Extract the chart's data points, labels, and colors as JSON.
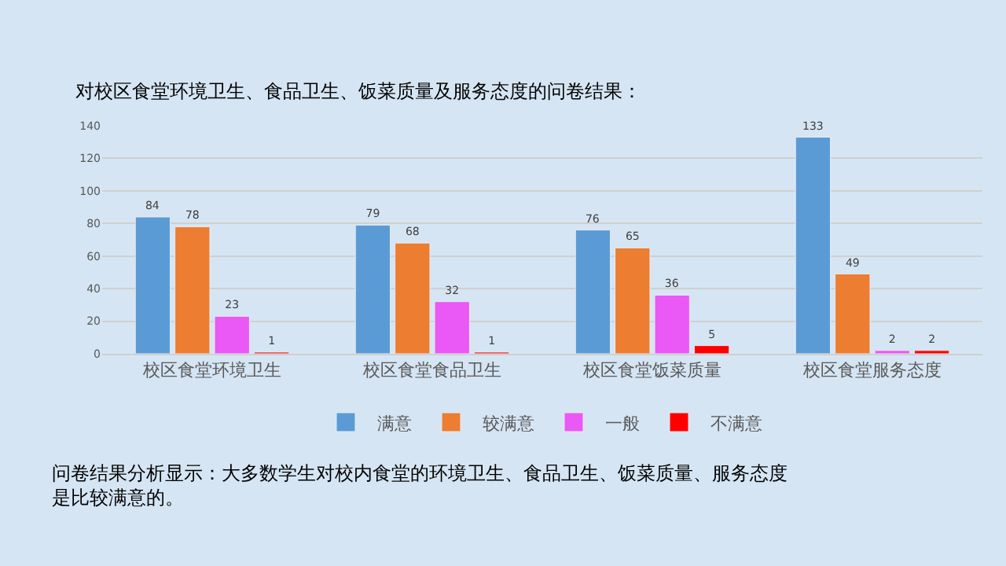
{
  "chart_data": {
    "type": "bar",
    "title": "对校区食堂环境卫生、食品卫生、饭菜质量及服务态度的问卷结果：",
    "categories": [
      "校区食堂环境卫生",
      "校区食堂食品卫生",
      "校区食堂饭菜质量",
      "校区食堂服务态度"
    ],
    "series": [
      {
        "name": "满意",
        "color": "#5b9bd5",
        "values": [
          84,
          79,
          76,
          133
        ]
      },
      {
        "name": "较满意",
        "color": "#ed7d31",
        "values": [
          78,
          68,
          65,
          49
        ]
      },
      {
        "name": "一般",
        "color": "#ea58f5",
        "values": [
          23,
          32,
          36,
          2
        ]
      },
      {
        "name": "不满意",
        "color": "#ff0000",
        "values": [
          1,
          1,
          5,
          2
        ]
      }
    ],
    "ylim": [
      0,
      140
    ],
    "yticks": [
      0,
      20,
      40,
      60,
      80,
      100,
      120,
      140
    ],
    "grid": "y",
    "legend": "bottom",
    "data_labels": true,
    "annotations": [
      "问卷结果分析显示：大多数学生对校内食堂的环境卫生、食品卫生、饭菜质量、服务态度是比较满意的。"
    ]
  }
}
